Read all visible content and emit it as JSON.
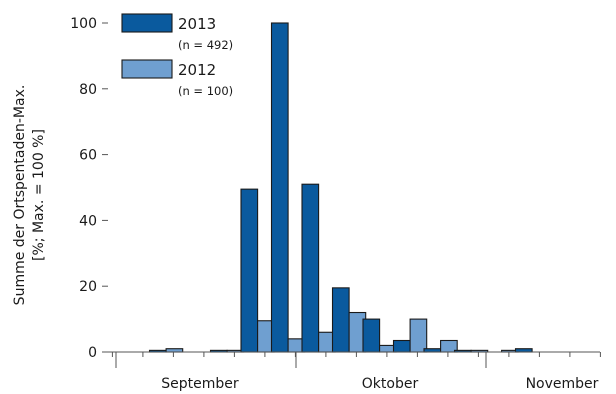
{
  "chart_data": {
    "type": "bar",
    "ylabel_lines": [
      "Summe der Ortspentaden-Max.",
      "[%; Max. = 100 %]"
    ],
    "ylim": [
      0,
      100
    ],
    "yticks": [
      0,
      20,
      40,
      60,
      80,
      100
    ],
    "month_labels": [
      "September",
      "Oktober",
      "November"
    ],
    "series": [
      {
        "name": "2013",
        "note": "(n = 492)",
        "color": "#0a5a9e",
        "values": [
          0,
          0.5,
          0,
          0.5,
          49.5,
          100,
          51,
          19.5,
          10,
          3.5,
          1,
          0.5,
          0,
          1,
          0,
          0
        ]
      },
      {
        "name": "2012",
        "note": "(n = 100)",
        "color": "#6f9fd0",
        "values": [
          0,
          1,
          0,
          0.5,
          9.5,
          4,
          6,
          12,
          2,
          10,
          3.5,
          0.5,
          0.5,
          0,
          0,
          0
        ]
      }
    ],
    "grid": false,
    "legend_position": "top-left"
  }
}
